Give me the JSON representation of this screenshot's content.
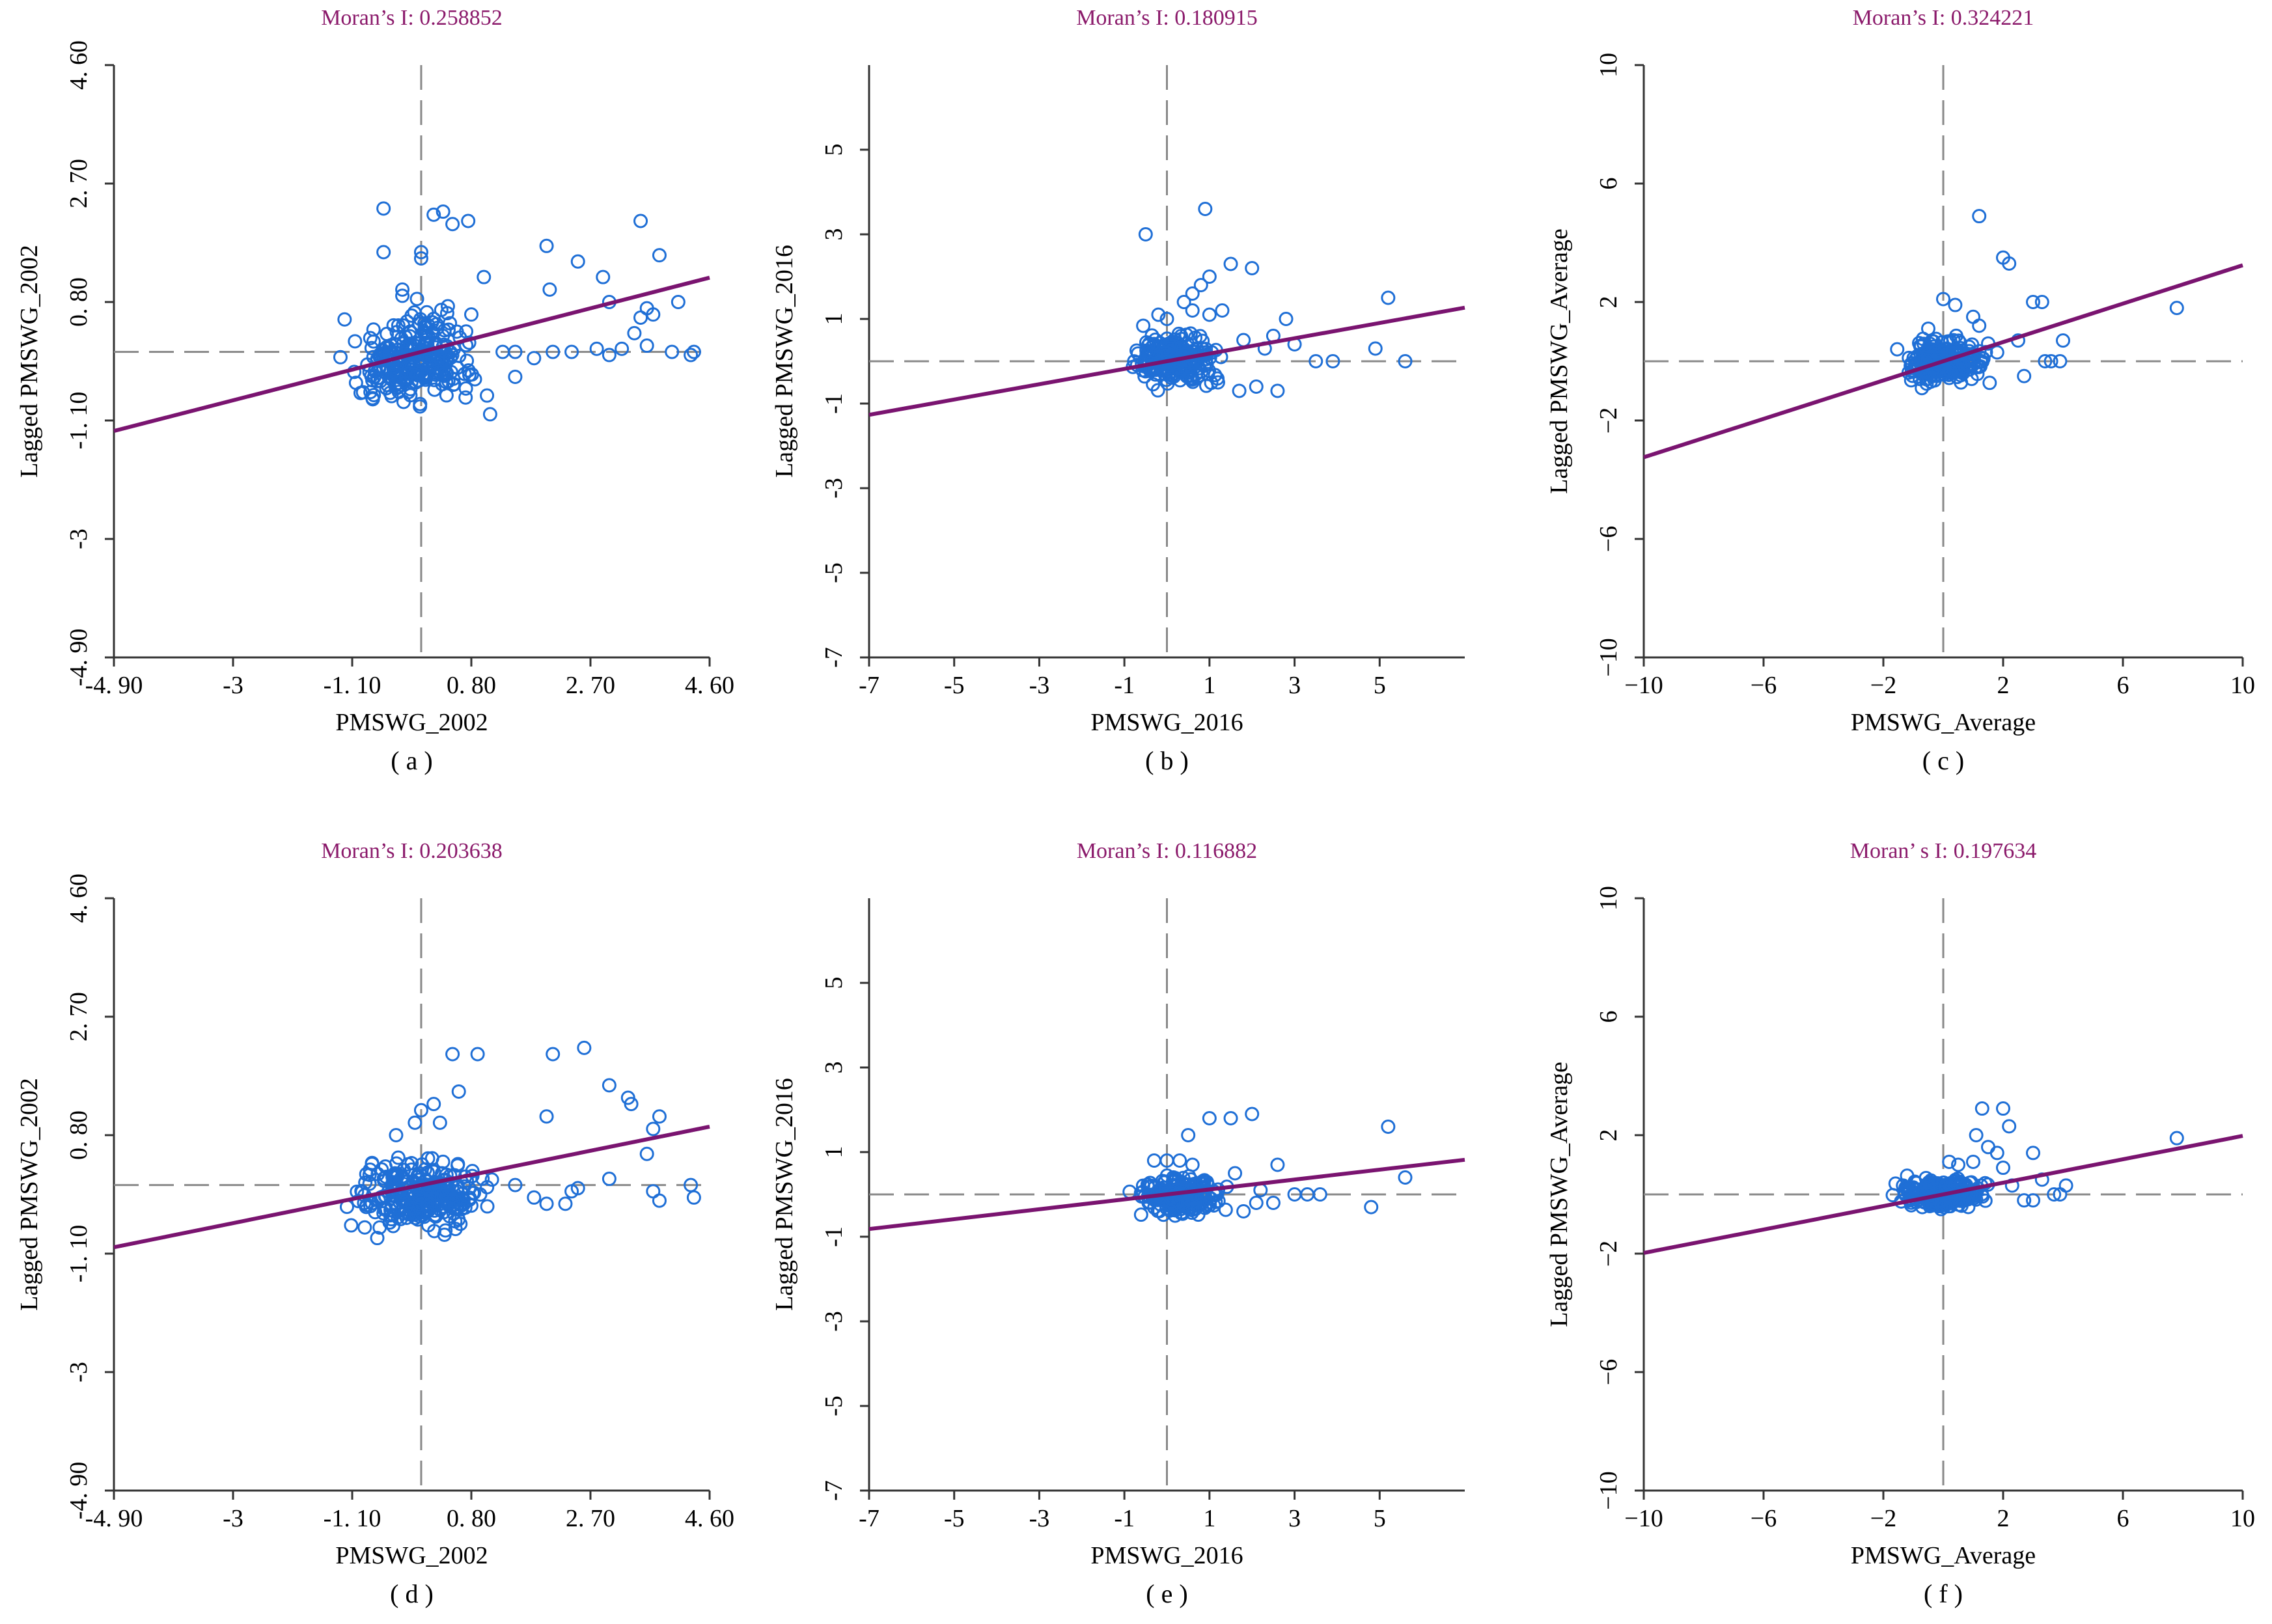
{
  "figure": {
    "colors": {
      "title": "#8B1A6B",
      "axis": "#333333",
      "points": "#1f6fd6",
      "fit_line": "#7a1470",
      "zero_lines": "#888888",
      "text": "#000000"
    }
  },
  "chart_data": [
    {
      "id": "a",
      "type": "scatter",
      "title": "Moran’s I:  0.258852",
      "xlabel": "PMSWG_2002",
      "ylabel": "Lagged PMSWG_2002",
      "caption": "( a )",
      "xlim": [
        -4.9,
        4.6
      ],
      "ylim": [
        -4.9,
        4.6
      ],
      "xticks": [
        -4.9,
        -3,
        -1.1,
        0.8,
        2.7,
        4.6
      ],
      "xtick_labels": [
        "-4. 90",
        "-3",
        "-1. 10",
        "0. 80",
        "2. 70",
        "4. 60"
      ],
      "yticks": [
        -4.9,
        -3,
        -1.1,
        0.8,
        2.7,
        4.6
      ],
      "ytick_labels": [
        "-4. 90",
        "-3",
        "-1. 10",
        "0. 80",
        "2. 70",
        "4. 60"
      ],
      "slope": 0.258852,
      "cluster": {
        "xmin": -1.4,
        "xmax": 1.2,
        "ymin": -1.2,
        "ymax": 0.9,
        "n": 260,
        "seed": 11
      },
      "points": [
        [
          -0.6,
          2.3
        ],
        [
          -0.6,
          1.6
        ],
        [
          -0.3,
          0.9
        ],
        [
          -0.3,
          1.0
        ],
        [
          0.0,
          1.5
        ],
        [
          0.0,
          1.6
        ],
        [
          0.2,
          2.2
        ],
        [
          0.35,
          2.25
        ],
        [
          0.5,
          2.05
        ],
        [
          0.75,
          2.1
        ],
        [
          1.0,
          1.2
        ],
        [
          1.05,
          -0.7
        ],
        [
          1.1,
          -1.0
        ],
        [
          0.8,
          0.6
        ],
        [
          2.0,
          1.7
        ],
        [
          2.5,
          1.45
        ],
        [
          2.9,
          1.2
        ],
        [
          3.0,
          0.8
        ],
        [
          2.05,
          1.0
        ],
        [
          3.5,
          2.1
        ],
        [
          3.8,
          1.55
        ],
        [
          3.6,
          0.7
        ],
        [
          3.7,
          0.6
        ],
        [
          3.5,
          0.55
        ],
        [
          4.1,
          0.8
        ],
        [
          3.4,
          0.3
        ],
        [
          3.6,
          0.1
        ],
        [
          4.0,
          0.0
        ],
        [
          4.3,
          -0.05
        ],
        [
          4.35,
          0.0
        ],
        [
          1.5,
          -0.4
        ],
        [
          1.3,
          0.0
        ],
        [
          1.5,
          0.0
        ],
        [
          1.8,
          -0.1
        ],
        [
          2.1,
          0.0
        ],
        [
          2.4,
          0.0
        ],
        [
          2.8,
          0.05
        ],
        [
          3.0,
          -0.05
        ],
        [
          3.2,
          0.05
        ]
      ]
    },
    {
      "id": "b",
      "type": "scatter",
      "title": "Moran’s I:  0.180915",
      "xlabel": "PMSWG_2016",
      "ylabel": "Lagged PMSWG_2016",
      "caption": "( b )",
      "xlim": [
        -7,
        7
      ],
      "ylim": [
        -7,
        7
      ],
      "xticks": [
        -7,
        -5,
        -3,
        -1,
        1,
        3,
        5
      ],
      "xtick_labels": [
        "-7",
        "-5",
        "-3",
        "-1",
        "1",
        "3",
        "5"
      ],
      "yticks": [
        -7,
        -5,
        -3,
        -1,
        1,
        3,
        5
      ],
      "ytick_labels": [
        "-7",
        "-5",
        "-3",
        "-1",
        "1",
        "3",
        "5"
      ],
      "slope": 0.180915,
      "cluster": {
        "xmin": -1.1,
        "xmax": 1.5,
        "ymin": -0.8,
        "ymax": 0.9,
        "n": 240,
        "seed": 23
      },
      "points": [
        [
          -0.5,
          3.0
        ],
        [
          0.9,
          3.6
        ],
        [
          0.4,
          1.4
        ],
        [
          0.6,
          1.6
        ],
        [
          0.8,
          1.8
        ],
        [
          1.0,
          2.0
        ],
        [
          1.5,
          2.3
        ],
        [
          2.0,
          2.2
        ],
        [
          1.3,
          1.2
        ],
        [
          1.8,
          0.5
        ],
        [
          2.3,
          0.3
        ],
        [
          2.5,
          0.6
        ],
        [
          2.8,
          1.0
        ],
        [
          3.0,
          0.4
        ],
        [
          2.1,
          -0.6
        ],
        [
          2.6,
          -0.7
        ],
        [
          3.5,
          0.0
        ],
        [
          3.9,
          0.0
        ],
        [
          4.9,
          0.3
        ],
        [
          5.2,
          1.5
        ],
        [
          5.6,
          0.0
        ],
        [
          1.0,
          1.1
        ],
        [
          0.6,
          1.2
        ],
        [
          0.0,
          1.0
        ],
        [
          -0.2,
          1.1
        ],
        [
          1.7,
          -0.7
        ],
        [
          1.2,
          -0.5
        ]
      ]
    },
    {
      "id": "c",
      "type": "scatter",
      "title": "Moran’s I:  0.324221",
      "xlabel": "PMSWG_Average",
      "ylabel": "Lagged PMSWG_Average",
      "caption": "( c )",
      "xlim": [
        -10,
        10
      ],
      "ylim": [
        -10,
        10
      ],
      "xticks": [
        -10,
        -6,
        -2,
        2,
        6,
        10
      ],
      "xtick_labels": [
        "−10",
        "−6",
        "−2",
        "2",
        "6",
        "10"
      ],
      "yticks": [
        -10,
        -6,
        -2,
        2,
        6,
        10
      ],
      "ytick_labels": [
        "−10",
        "−6",
        "−2",
        "2",
        "6",
        "10"
      ],
      "slope": 0.324221,
      "cluster": {
        "xmin": -1.8,
        "xmax": 1.8,
        "ymin": -1.0,
        "ymax": 1.0,
        "n": 260,
        "seed": 37
      },
      "points": [
        [
          1.2,
          4.9
        ],
        [
          2.0,
          3.5
        ],
        [
          2.2,
          3.3
        ],
        [
          0.0,
          2.1
        ],
        [
          3.0,
          2.0
        ],
        [
          3.3,
          2.0
        ],
        [
          7.8,
          1.8
        ],
        [
          1.0,
          1.5
        ],
        [
          0.4,
          1.9
        ],
        [
          -0.5,
          1.1
        ],
        [
          1.2,
          1.2
        ],
        [
          2.5,
          0.7
        ],
        [
          3.4,
          0.0
        ],
        [
          3.6,
          0.0
        ],
        [
          3.9,
          0.0
        ],
        [
          4.0,
          0.7
        ],
        [
          2.7,
          -0.5
        ],
        [
          1.5,
          0.6
        ],
        [
          1.8,
          0.3
        ]
      ]
    },
    {
      "id": "d",
      "type": "scatter",
      "title": "Moran’s I:  0.203638",
      "xlabel": "PMSWG_2002",
      "ylabel": "Lagged PMSWG_2002",
      "caption": "( d )",
      "xlim": [
        -4.9,
        4.6
      ],
      "ylim": [
        -4.9,
        4.6
      ],
      "xticks": [
        -4.9,
        -3,
        -1.1,
        0.8,
        2.7,
        4.6
      ],
      "xtick_labels": [
        "-4. 90",
        "-3",
        "-1. 10",
        "0. 80",
        "2. 70",
        "4. 60"
      ],
      "yticks": [
        -4.9,
        -3,
        -1.1,
        0.8,
        2.7,
        4.6
      ],
      "ytick_labels": [
        "-4. 90",
        "-3",
        "-1. 10",
        "0. 80",
        "2. 70",
        "4. 60"
      ],
      "slope": 0.203638,
      "cluster": {
        "xmin": -1.4,
        "xmax": 1.3,
        "ymin": -0.9,
        "ymax": 0.6,
        "n": 280,
        "seed": 41
      },
      "points": [
        [
          0.5,
          2.1
        ],
        [
          0.9,
          2.1
        ],
        [
          2.1,
          2.1
        ],
        [
          2.6,
          2.2
        ],
        [
          3.0,
          1.6
        ],
        [
          3.3,
          1.4
        ],
        [
          3.35,
          1.3
        ],
        [
          0.0,
          1.2
        ],
        [
          0.2,
          1.3
        ],
        [
          0.6,
          1.5
        ],
        [
          -0.1,
          1.0
        ],
        [
          0.3,
          1.0
        ],
        [
          2.0,
          1.1
        ],
        [
          3.8,
          1.1
        ],
        [
          3.7,
          0.9
        ],
        [
          3.6,
          0.5
        ],
        [
          4.3,
          0.0
        ],
        [
          4.35,
          -0.2
        ],
        [
          3.7,
          -0.1
        ],
        [
          3.8,
          -0.25
        ],
        [
          2.5,
          -0.05
        ],
        [
          1.5,
          0.0
        ],
        [
          1.8,
          -0.2
        ],
        [
          2.0,
          -0.3
        ],
        [
          2.3,
          -0.3
        ],
        [
          2.4,
          -0.1
        ],
        [
          3.0,
          0.1
        ],
        [
          -0.4,
          0.8
        ],
        [
          -0.5,
          -0.6
        ],
        [
          -0.7,
          -0.85
        ]
      ]
    },
    {
      "id": "e",
      "type": "scatter",
      "title": "Moran’s I:  0.116882",
      "xlabel": "PMSWG_2016",
      "ylabel": "Lagged PMSWG_2016",
      "caption": "( e )",
      "xlim": [
        -7,
        7
      ],
      "ylim": [
        -7,
        7
      ],
      "xticks": [
        -7,
        -5,
        -3,
        -1,
        1,
        3,
        5
      ],
      "xtick_labels": [
        "-7",
        "-5",
        "-3",
        "-1",
        "1",
        "3",
        "5"
      ],
      "yticks": [
        -7,
        -5,
        -3,
        -1,
        1,
        3,
        5
      ],
      "ytick_labels": [
        "-7",
        "-5",
        "-3",
        "-1",
        "1",
        "3",
        "5"
      ],
      "slope": 0.116882,
      "cluster": {
        "xmin": -1.0,
        "xmax": 1.6,
        "ymin": -0.6,
        "ymax": 0.6,
        "n": 220,
        "seed": 53
      },
      "points": [
        [
          0.5,
          1.4
        ],
        [
          1.0,
          1.8
        ],
        [
          1.5,
          1.8
        ],
        [
          2.0,
          1.9
        ],
        [
          -0.3,
          0.8
        ],
        [
          0.0,
          0.8
        ],
        [
          0.3,
          0.8
        ],
        [
          0.6,
          0.7
        ],
        [
          1.6,
          0.5
        ],
        [
          2.6,
          0.7
        ],
        [
          2.2,
          0.1
        ],
        [
          2.5,
          -0.2
        ],
        [
          3.0,
          0.0
        ],
        [
          3.3,
          0.0
        ],
        [
          3.6,
          0.0
        ],
        [
          4.8,
          -0.3
        ],
        [
          5.2,
          1.6
        ],
        [
          5.6,
          0.4
        ],
        [
          1.8,
          -0.4
        ],
        [
          2.1,
          -0.2
        ]
      ]
    },
    {
      "id": "f",
      "type": "scatter",
      "title": "Moran’ s I:  0.197634",
      "xlabel": "PMSWG_Average",
      "ylabel": "Lagged PMSWG_Average",
      "caption": "( f )",
      "xlim": [
        -10,
        10
      ],
      "ylim": [
        -10,
        10
      ],
      "xticks": [
        -10,
        -6,
        -2,
        2,
        6,
        10
      ],
      "xtick_labels": [
        "−10",
        "−6",
        "−2",
        "2",
        "6",
        "10"
      ],
      "yticks": [
        -10,
        -6,
        -2,
        2,
        6,
        10
      ],
      "ytick_labels": [
        "−10",
        "−6",
        "−2",
        "2",
        "6",
        "10"
      ],
      "slope": 0.197634,
      "cluster": {
        "xmin": -1.8,
        "xmax": 2.0,
        "ymin": -0.6,
        "ymax": 0.7,
        "n": 240,
        "seed": 67
      },
      "points": [
        [
          1.3,
          2.9
        ],
        [
          2.0,
          2.9
        ],
        [
          1.1,
          2.0
        ],
        [
          2.2,
          2.3
        ],
        [
          1.5,
          1.6
        ],
        [
          1.8,
          1.4
        ],
        [
          3.0,
          1.4
        ],
        [
          7.8,
          1.9
        ],
        [
          2.0,
          0.9
        ],
        [
          2.3,
          0.3
        ],
        [
          2.7,
          -0.2
        ],
        [
          3.0,
          -0.2
        ],
        [
          3.3,
          0.5
        ],
        [
          3.7,
          0.0
        ],
        [
          3.9,
          0.0
        ],
        [
          4.1,
          0.3
        ],
        [
          0.5,
          1.0
        ],
        [
          0.2,
          1.1
        ],
        [
          1.0,
          1.1
        ]
      ]
    }
  ]
}
